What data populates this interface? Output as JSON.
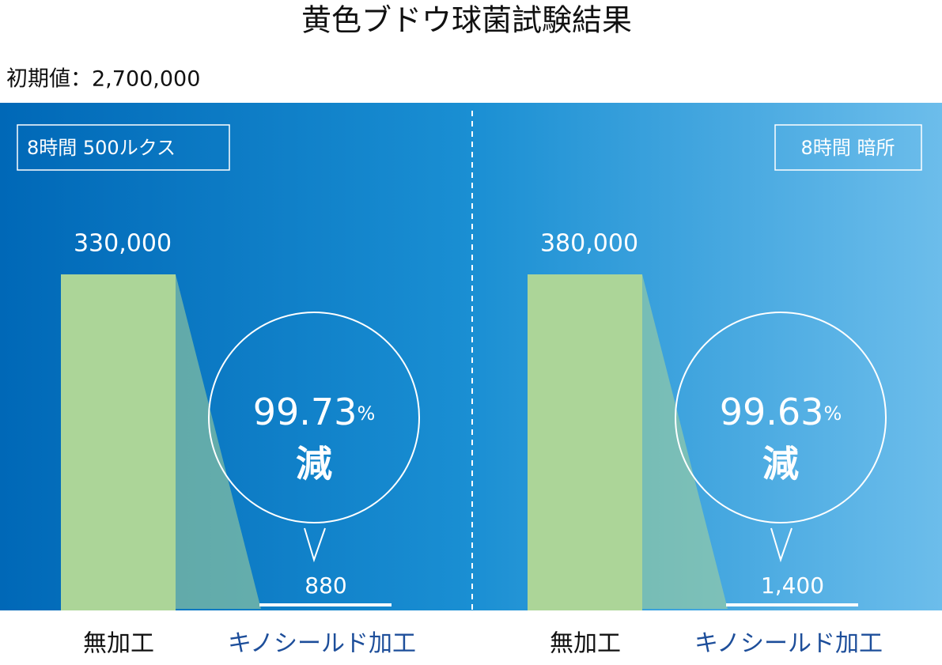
{
  "title": "黄色ブドウ球菌試験結果",
  "initial": "初期値：2,700,000",
  "panels": [
    {
      "condition": "8時間 500ルクス",
      "untreated_value": "330,000",
      "treated_value": "880",
      "reduction": "99.73",
      "unit": "%",
      "reduced": "減",
      "untreated_label": "無加工",
      "treated_label": "キノシールド加工"
    },
    {
      "condition": "8時間 暗所",
      "untreated_value": "380,000",
      "treated_value": "1,400",
      "reduction": "99.63",
      "unit": "%",
      "reduced": "減",
      "untreated_label": "無加工",
      "treated_label": "キノシールド加工"
    }
  ]
}
